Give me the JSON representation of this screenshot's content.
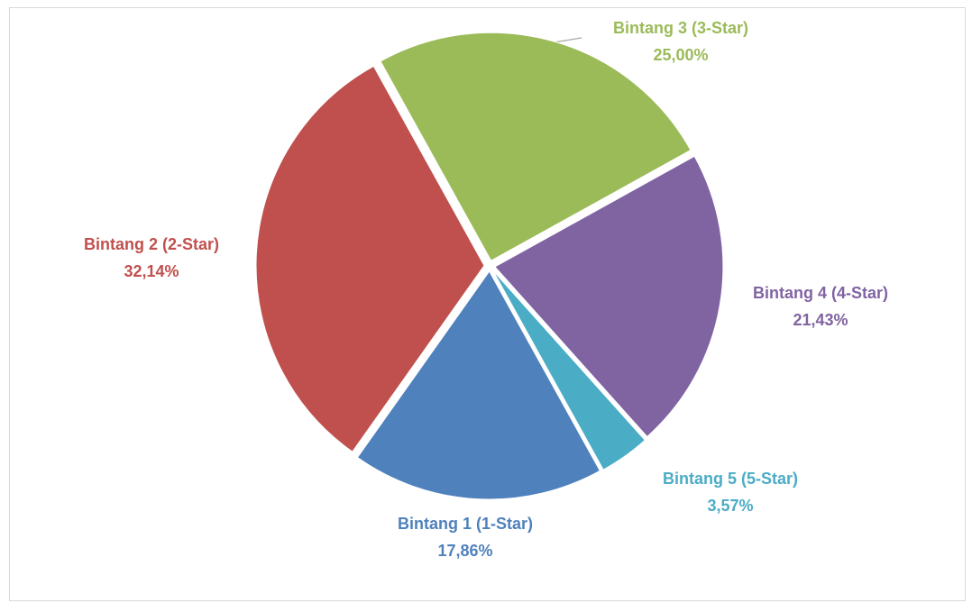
{
  "chart_data": {
    "type": "pie",
    "categories": [
      "Bintang 1 (1-Star)",
      "Bintang 2 (2-Star)",
      "Bintang 3 (3-Star)",
      "Bintang 4 (4-Star)",
      "Bintang 5 (5-Star)"
    ],
    "values": [
      17.86,
      32.14,
      25,
      21.43,
      3.57
    ],
    "value_labels": [
      "17,86%",
      "32,14%",
      "25,00%",
      "21,43%",
      "3,57%"
    ],
    "colors": [
      "#4f81bd",
      "#c0504d",
      "#9bbb59",
      "#8064a2",
      "#4bacc6"
    ]
  }
}
